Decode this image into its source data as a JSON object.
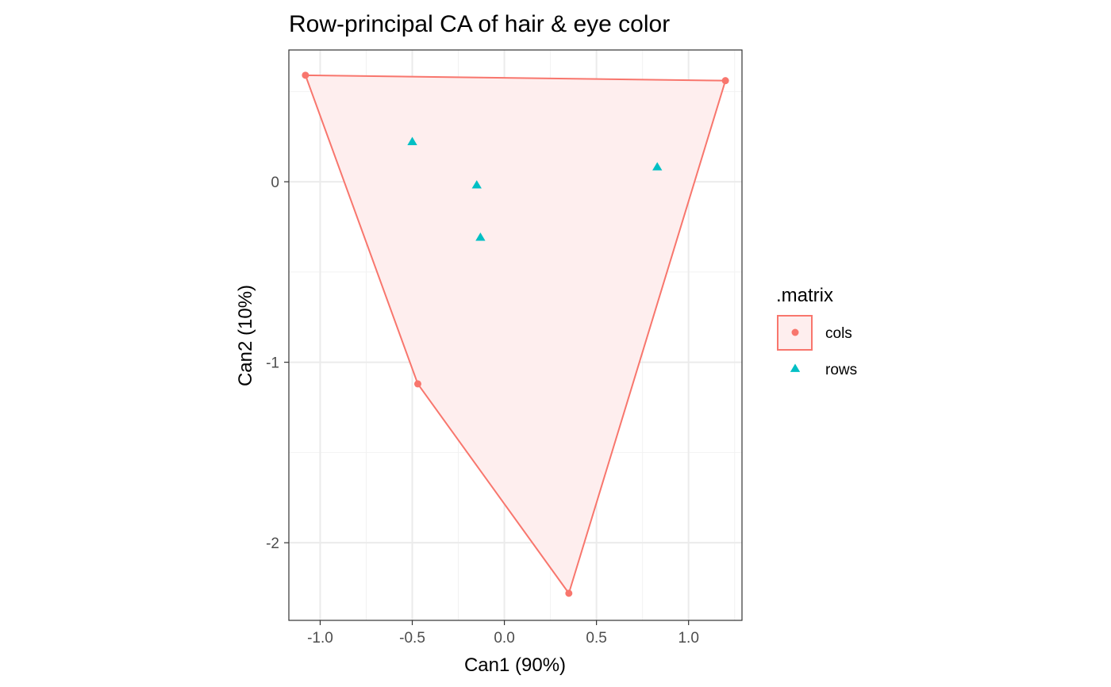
{
  "chart_data": {
    "type": "scatter",
    "title": "Row-principal CA of hair & eye color",
    "xlabel": "Can1 (90%)",
    "ylabel": "Can2 (10%)",
    "xlim": [
      -1.17,
      1.29
    ],
    "ylim": [
      -2.43,
      0.73
    ],
    "x_ticks": [
      -1.0,
      -0.5,
      0.0,
      0.5,
      1.0
    ],
    "x_tick_labels": [
      "-1.0",
      "-0.5",
      "0.0",
      "0.5",
      "1.0"
    ],
    "y_ticks": [
      -2,
      -1,
      0
    ],
    "y_tick_labels": [
      "-2",
      "-1",
      "0"
    ],
    "grid": true,
    "legend": {
      "title": ".matrix",
      "position": "right",
      "entries": [
        {
          "label": "cols",
          "shape": "circle",
          "color": "#F8766D"
        },
        {
          "label": "rows",
          "shape": "triangle",
          "color": "#00BFC4"
        }
      ]
    },
    "series": [
      {
        "name": "cols",
        "shape": "circle",
        "color": "#F8766D",
        "hull": true,
        "points": [
          {
            "x": -1.08,
            "y": 0.59
          },
          {
            "x": 1.2,
            "y": 0.56
          },
          {
            "x": -0.47,
            "y": -1.12
          },
          {
            "x": 0.35,
            "y": -2.28
          }
        ]
      },
      {
        "name": "rows",
        "shape": "triangle",
        "color": "#00BFC4",
        "hull": false,
        "points": [
          {
            "x": -0.5,
            "y": 0.22
          },
          {
            "x": -0.15,
            "y": -0.02
          },
          {
            "x": -0.13,
            "y": -0.31
          },
          {
            "x": 0.83,
            "y": 0.08
          }
        ]
      }
    ],
    "hull_order": [
      0,
      1,
      3,
      2
    ],
    "hull_fill": "#FEEEEE"
  }
}
